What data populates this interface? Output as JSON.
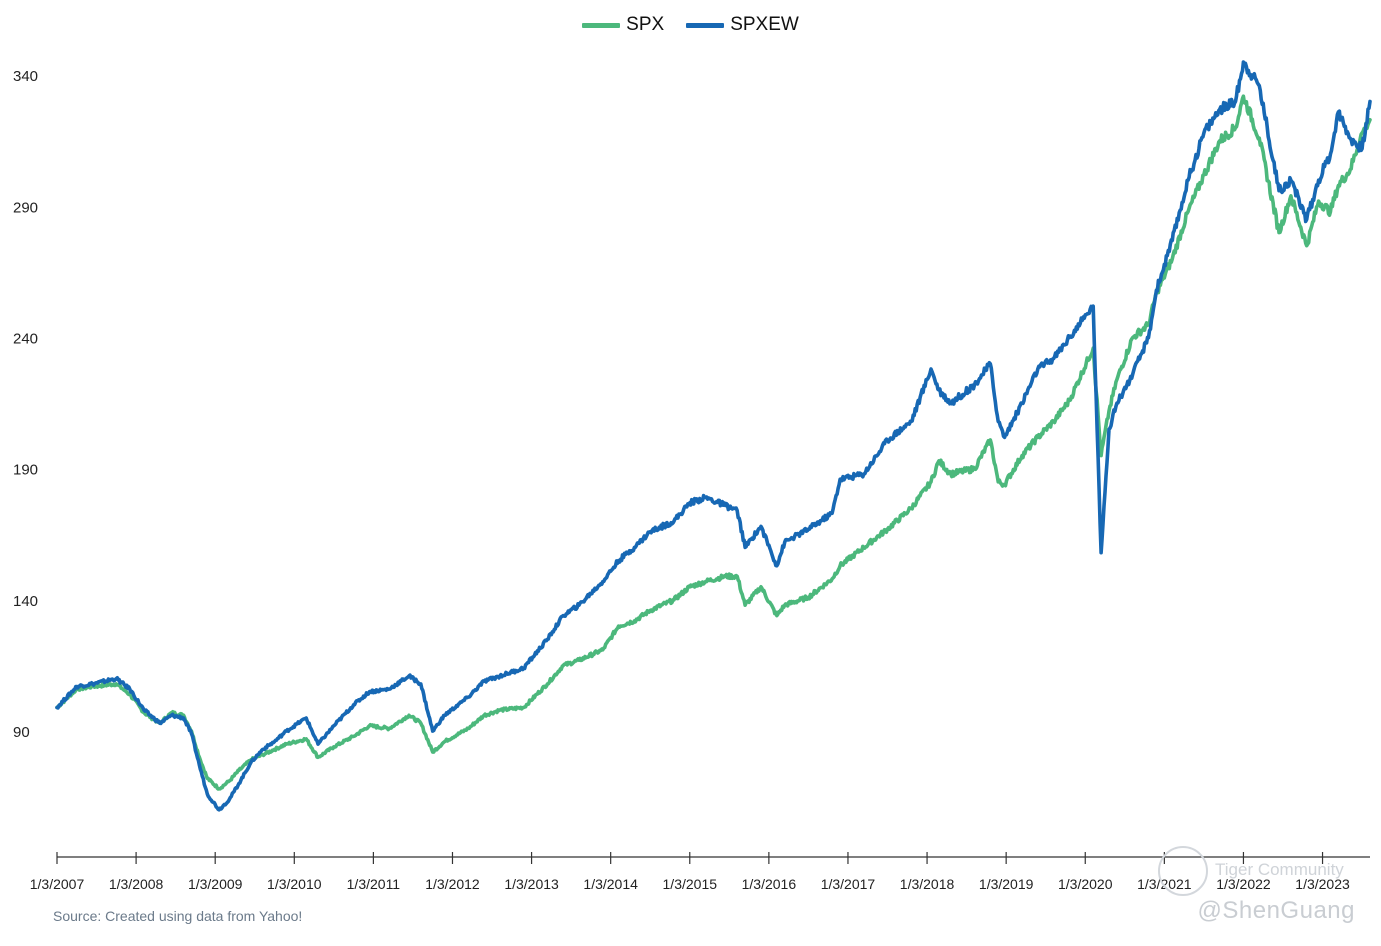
{
  "legend": {
    "spx_label": "SPX",
    "spxew_label": "SPXEW"
  },
  "source_note": "Source: Created using data from Yahoo!",
  "watermark": {
    "handle": "@ShenGuang",
    "community": "Tiger Community"
  },
  "colors": {
    "spx": "#4CB87C",
    "spxew": "#1768B4",
    "axis": "#333333"
  },
  "chart_data": {
    "type": "line",
    "title": "",
    "xlabel": "",
    "ylabel": "",
    "legend_position": "top-center",
    "grid": false,
    "ylim": [
      42,
      358
    ],
    "y_ticks": [
      90,
      140,
      190,
      240,
      290,
      340
    ],
    "x_ticks": [
      "1/3/2007",
      "1/3/2008",
      "1/3/2009",
      "1/3/2010",
      "1/3/2011",
      "1/3/2012",
      "1/3/2013",
      "1/3/2014",
      "1/3/2015",
      "1/3/2016",
      "1/3/2017",
      "1/3/2018",
      "1/3/2019",
      "1/3/2020",
      "1/3/2021",
      "1/3/2022",
      "1/3/2023"
    ],
    "x": [
      2007.0,
      2007.25,
      2007.45,
      2007.75,
      2007.92,
      2008.1,
      2008.3,
      2008.45,
      2008.6,
      2008.7,
      2008.8,
      2008.9,
      2009.05,
      2009.18,
      2009.3,
      2009.45,
      2009.6,
      2009.75,
      2009.9,
      2010.15,
      2010.3,
      2010.5,
      2010.75,
      2010.95,
      2011.2,
      2011.45,
      2011.6,
      2011.75,
      2011.9,
      2012.2,
      2012.4,
      2012.6,
      2012.9,
      2013.2,
      2013.4,
      2013.6,
      2013.9,
      2014.1,
      2014.3,
      2014.5,
      2014.8,
      2015.0,
      2015.2,
      2015.45,
      2015.6,
      2015.7,
      2015.9,
      2016.1,
      2016.2,
      2016.5,
      2016.8,
      2016.9,
      2017.2,
      2017.5,
      2017.8,
      2018.05,
      2018.15,
      2018.3,
      2018.6,
      2018.8,
      2018.9,
      2018.98,
      2019.2,
      2019.4,
      2019.6,
      2019.8,
      2020.1,
      2020.2,
      2020.3,
      2020.4,
      2020.6,
      2020.8,
      2020.9,
      2021.1,
      2021.3,
      2021.5,
      2021.7,
      2021.9,
      2022.0,
      2022.2,
      2022.45,
      2022.6,
      2022.8,
      2022.95,
      2023.1,
      2023.2,
      2023.35,
      2023.5,
      2023.6
    ],
    "series": [
      {
        "name": "SPX",
        "values": [
          99,
          106,
          107,
          108,
          104,
          97,
          93,
          97,
          96,
          90,
          80,
          72,
          68,
          71,
          75,
          79,
          81,
          83,
          85,
          87,
          80,
          84,
          88,
          92,
          91,
          96,
          93,
          82,
          86,
          91,
          96,
          98,
          99,
          108,
          115,
          117,
          121,
          130,
          132,
          136,
          140,
          145,
          147,
          149,
          149,
          138,
          145,
          134,
          138,
          141,
          148,
          153,
          160,
          167,
          175,
          185,
          193,
          188,
          190,
          201,
          185,
          184,
          195,
          202,
          208,
          216,
          236,
          195,
          212,
          224,
          240,
          245,
          257,
          270,
          288,
          302,
          315,
          320,
          332,
          316,
          280,
          294,
          275,
          292,
          288,
          298,
          304,
          318,
          323
        ]
      },
      {
        "name": "SPXEW",
        "values": [
          99,
          107,
          108,
          110,
          106,
          98,
          93,
          96,
          95,
          89,
          77,
          66,
          60,
          64,
          70,
          78,
          83,
          86,
          90,
          95,
          85,
          92,
          100,
          105,
          106,
          111,
          108,
          90,
          96,
          103,
          109,
          111,
          114,
          125,
          134,
          138,
          147,
          155,
          160,
          166,
          170,
          177,
          179,
          176,
          174,
          160,
          168,
          153,
          162,
          167,
          173,
          186,
          188,
          201,
          208,
          228,
          220,
          215,
          222,
          230,
          208,
          202,
          215,
          228,
          232,
          240,
          252,
          158,
          205,
          215,
          226,
          240,
          258,
          277,
          300,
          318,
          327,
          330,
          345,
          336,
          296,
          300,
          285,
          300,
          310,
          326,
          316,
          312,
          330
        ]
      }
    ]
  }
}
